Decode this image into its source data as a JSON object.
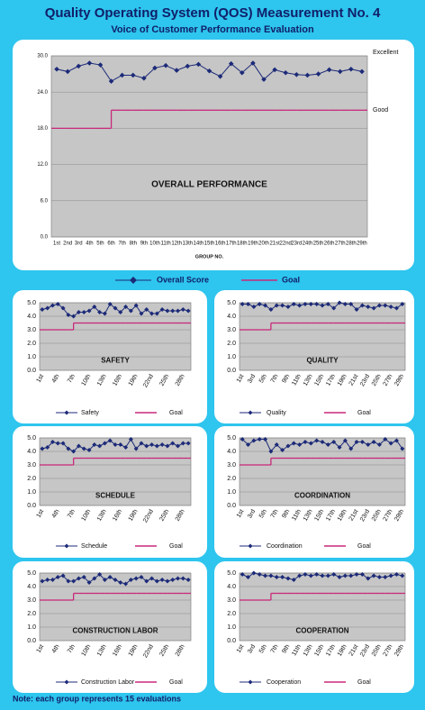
{
  "header": {
    "title": "Quality Operating System (QOS) Measurement No. 4",
    "subtitle": "Voice of Customer Performance Evaluation"
  },
  "note": "Note: each group represents 15 evaluations",
  "chart_data": [
    {
      "type": "line",
      "title": "OVERALL PERFORMANCE",
      "xlabel": "GROUP NO.",
      "annotations": [
        "Excellent",
        "Good"
      ],
      "categories": [
        "1st",
        "2nd",
        "3rd",
        "4th",
        "5th",
        "6th",
        "7th",
        "8th",
        "9th",
        "10th",
        "11th",
        "12th",
        "13th",
        "14th",
        "15th",
        "16th",
        "17th",
        "18th",
        "19th",
        "20th",
        "21st",
        "22nd",
        "23rd",
        "24th",
        "25th",
        "26th",
        "27th",
        "28th",
        "29th"
      ],
      "series": [
        {
          "name": "Overall Score",
          "color": "#1c2a78",
          "marker": "diamond",
          "values": [
            27.8,
            27.4,
            28.3,
            28.8,
            28.5,
            25.8,
            26.8,
            26.8,
            26.3,
            28.0,
            28.4,
            27.6,
            28.3,
            28.6,
            27.5,
            26.6,
            28.7,
            27.2,
            28.8,
            26.1,
            27.7,
            27.2,
            26.9,
            26.8,
            27.0,
            27.7,
            27.4,
            27.8,
            27.4
          ]
        },
        {
          "name": "Goal",
          "color": "#c8287a",
          "drawstyle": "steps",
          "values": [
            18,
            18,
            18,
            18,
            18,
            21,
            21,
            21,
            21,
            21,
            21,
            21,
            21,
            21,
            21,
            21,
            21,
            21,
            21,
            21,
            21,
            21,
            21,
            21,
            21,
            21,
            21,
            21,
            21
          ]
        }
      ],
      "ylim": [
        0,
        30
      ],
      "yticks": [
        {
          "value": 0,
          "label": "0.0"
        },
        {
          "value": 6,
          "label": "6.0"
        },
        {
          "value": 12,
          "label": "12.0"
        },
        {
          "value": 18,
          "label": "18.0"
        },
        {
          "value": 24,
          "label": "24.0"
        },
        {
          "value": 30,
          "label": "30.0"
        }
      ],
      "grid": true
    },
    {
      "type": "line",
      "title": "SAFETY",
      "categories": [
        "1st",
        null,
        null,
        "4th",
        null,
        null,
        "7th",
        null,
        null,
        "10th",
        null,
        null,
        "13th",
        null,
        null,
        "16th",
        null,
        null,
        "19th",
        null,
        null,
        "22nd",
        null,
        null,
        "25th",
        null,
        null,
        "28th",
        null
      ],
      "series": [
        {
          "name": "Safety",
          "color": "#1c2a78",
          "marker": "diamond",
          "values": [
            4.5,
            4.6,
            4.8,
            4.9,
            4.6,
            4.1,
            4.0,
            4.3,
            4.3,
            4.4,
            4.7,
            4.3,
            4.2,
            4.9,
            4.6,
            4.3,
            4.7,
            4.4,
            4.8,
            4.2,
            4.5,
            4.2,
            4.2,
            4.5,
            4.4,
            4.4,
            4.4,
            4.5,
            4.4
          ]
        },
        {
          "name": "Goal",
          "color": "#c8287a",
          "drawstyle": "steps",
          "values": [
            3,
            3,
            3,
            3,
            3,
            3,
            3.5,
            3.5,
            3.5,
            3.5,
            3.5,
            3.5,
            3.5,
            3.5,
            3.5,
            3.5,
            3.5,
            3.5,
            3.5,
            3.5,
            3.5,
            3.5,
            3.5,
            3.5,
            3.5,
            3.5,
            3.5,
            3.5,
            3.5
          ]
        }
      ],
      "ylim": [
        0,
        5
      ],
      "yticks": [
        {
          "value": 0,
          "label": "0.0"
        },
        {
          "value": 1,
          "label": "1.0"
        },
        {
          "value": 2,
          "label": "2.0"
        },
        {
          "value": 3,
          "label": "3.0"
        },
        {
          "value": 4,
          "label": "4.0"
        },
        {
          "value": 5,
          "label": "5.0"
        }
      ],
      "grid": true
    },
    {
      "type": "line",
      "title": "QUALITY",
      "categories": [
        "1st",
        null,
        "3rd",
        null,
        "5th",
        null,
        "7th",
        null,
        "9th",
        null,
        "11th",
        null,
        "13th",
        null,
        "15th",
        null,
        "17th",
        null,
        "19th",
        null,
        "21st",
        null,
        "23rd",
        null,
        "25th",
        null,
        "27th",
        null,
        "29th"
      ],
      "series": [
        {
          "name": "Quality",
          "color": "#1c2a78",
          "marker": "diamond",
          "values": [
            4.9,
            4.9,
            4.7,
            4.9,
            4.8,
            4.5,
            4.8,
            4.8,
            4.7,
            4.9,
            4.8,
            4.9,
            4.9,
            4.9,
            4.8,
            4.9,
            4.6,
            5.0,
            4.9,
            4.9,
            4.5,
            4.8,
            4.7,
            4.6,
            4.8,
            4.8,
            4.7,
            4.6,
            4.9
          ]
        },
        {
          "name": "Goal",
          "color": "#c8287a",
          "drawstyle": "steps",
          "values": [
            3,
            3,
            3,
            3,
            3,
            3.5,
            3.5,
            3.5,
            3.5,
            3.5,
            3.5,
            3.5,
            3.5,
            3.5,
            3.5,
            3.5,
            3.5,
            3.5,
            3.5,
            3.5,
            3.5,
            3.5,
            3.5,
            3.5,
            3.5,
            3.5,
            3.5,
            3.5,
            3.5
          ]
        }
      ],
      "ylim": [
        0,
        5
      ],
      "yticks": [
        {
          "value": 0,
          "label": "0.0"
        },
        {
          "value": 1,
          "label": "1.0"
        },
        {
          "value": 2,
          "label": "2.0"
        },
        {
          "value": 3,
          "label": "3.0"
        },
        {
          "value": 4,
          "label": "4.0"
        },
        {
          "value": 5,
          "label": "5.0"
        }
      ],
      "grid": true
    },
    {
      "type": "line",
      "title": "SCHEDULE",
      "categories": [
        "1st",
        null,
        null,
        "4th",
        null,
        null,
        "7th",
        null,
        null,
        "10th",
        null,
        null,
        "13th",
        null,
        null,
        "16th",
        null,
        null,
        "19th",
        null,
        null,
        "22nd",
        null,
        null,
        "25th",
        null,
        null,
        "28th",
        null
      ],
      "series": [
        {
          "name": "Schedule",
          "color": "#1c2a78",
          "marker": "diamond",
          "values": [
            4.2,
            4.3,
            4.7,
            4.6,
            4.6,
            4.2,
            4.0,
            4.4,
            4.2,
            4.1,
            4.5,
            4.4,
            4.6,
            4.8,
            4.5,
            4.5,
            4.3,
            4.9,
            4.2,
            4.6,
            4.4,
            4.5,
            4.4,
            4.5,
            4.4,
            4.6,
            4.4,
            4.6,
            4.6
          ]
        },
        {
          "name": "Goal",
          "color": "#c8287a",
          "drawstyle": "steps",
          "values": [
            3,
            3,
            3,
            3,
            3,
            3,
            3.5,
            3.5,
            3.5,
            3.5,
            3.5,
            3.5,
            3.5,
            3.5,
            3.5,
            3.5,
            3.5,
            3.5,
            3.5,
            3.5,
            3.5,
            3.5,
            3.5,
            3.5,
            3.5,
            3.5,
            3.5,
            3.5,
            3.5
          ]
        }
      ],
      "ylim": [
        0,
        5
      ],
      "yticks": [
        {
          "value": 0,
          "label": "0.0"
        },
        {
          "value": 1,
          "label": "1.0"
        },
        {
          "value": 2,
          "label": "2.0"
        },
        {
          "value": 3,
          "label": "3.0"
        },
        {
          "value": 4,
          "label": "4.0"
        },
        {
          "value": 5,
          "label": "5.0"
        }
      ],
      "grid": true
    },
    {
      "type": "line",
      "title": "COORDINATION",
      "categories": [
        "1st",
        null,
        "3rd",
        null,
        "5th",
        null,
        "7th",
        null,
        "9th",
        null,
        "11th",
        null,
        "13th",
        null,
        "15th",
        null,
        "17th",
        null,
        "19th",
        null,
        "21st",
        null,
        "23rd",
        null,
        "25th",
        null,
        "27th",
        null,
        "29th"
      ],
      "series": [
        {
          "name": "Coordination",
          "color": "#1c2a78",
          "marker": "diamond",
          "values": [
            4.9,
            4.5,
            4.8,
            4.9,
            4.9,
            4.0,
            4.5,
            4.1,
            4.4,
            4.6,
            4.5,
            4.7,
            4.6,
            4.8,
            4.7,
            4.5,
            4.7,
            4.3,
            4.8,
            4.2,
            4.7,
            4.7,
            4.5,
            4.7,
            4.5,
            4.9,
            4.6,
            4.8,
            4.2
          ]
        },
        {
          "name": "Goal",
          "color": "#c8287a",
          "drawstyle": "steps",
          "values": [
            3,
            3,
            3,
            3,
            3,
            3.5,
            3.5,
            3.5,
            3.5,
            3.5,
            3.5,
            3.5,
            3.5,
            3.5,
            3.5,
            3.5,
            3.5,
            3.5,
            3.5,
            3.5,
            3.5,
            3.5,
            3.5,
            3.5,
            3.5,
            3.5,
            3.5,
            3.5,
            3.5
          ]
        }
      ],
      "ylim": [
        0,
        5
      ],
      "yticks": [
        {
          "value": 0,
          "label": "0.0"
        },
        {
          "value": 1,
          "label": "1.0"
        },
        {
          "value": 2,
          "label": "2.0"
        },
        {
          "value": 3,
          "label": "3.0"
        },
        {
          "value": 4,
          "label": "4.0"
        },
        {
          "value": 5,
          "label": "5.0"
        }
      ],
      "grid": true
    },
    {
      "type": "line",
      "title": "CONSTRUCTION LABOR",
      "categories": [
        "1st",
        null,
        null,
        "4th",
        null,
        null,
        "7th",
        null,
        null,
        "10th",
        null,
        null,
        "13th",
        null,
        null,
        "16th",
        null,
        null,
        "19th",
        null,
        null,
        "22nd",
        null,
        null,
        "25th",
        null,
        null,
        "28th",
        null
      ],
      "series": [
        {
          "name": "Construction Labor",
          "color": "#1c2a78",
          "marker": "diamond",
          "values": [
            4.4,
            4.5,
            4.5,
            4.7,
            4.8,
            4.4,
            4.4,
            4.6,
            4.7,
            4.3,
            4.6,
            4.9,
            4.5,
            4.7,
            4.5,
            4.3,
            4.2,
            4.5,
            4.6,
            4.7,
            4.4,
            4.6,
            4.4,
            4.5,
            4.4,
            4.5,
            4.6,
            4.6,
            4.5
          ]
        },
        {
          "name": "Goal",
          "color": "#c8287a",
          "drawstyle": "steps",
          "values": [
            3,
            3,
            3,
            3,
            3,
            3,
            3.5,
            3.5,
            3.5,
            3.5,
            3.5,
            3.5,
            3.5,
            3.5,
            3.5,
            3.5,
            3.5,
            3.5,
            3.5,
            3.5,
            3.5,
            3.5,
            3.5,
            3.5,
            3.5,
            3.5,
            3.5,
            3.5,
            3.5
          ]
        }
      ],
      "ylim": [
        0,
        5
      ],
      "yticks": [
        {
          "value": 0,
          "label": "0.0"
        },
        {
          "value": 1,
          "label": "1.0"
        },
        {
          "value": 2,
          "label": "2.0"
        },
        {
          "value": 3,
          "label": "3.0"
        },
        {
          "value": 4,
          "label": "4.0"
        },
        {
          "value": 5,
          "label": "5.0"
        }
      ],
      "grid": true
    },
    {
      "type": "line",
      "title": "COOPERATION",
      "categories": [
        "1st",
        null,
        "3rd",
        null,
        "5th",
        null,
        "7th",
        null,
        "9th",
        null,
        "11th",
        null,
        "13th",
        null,
        "15th",
        null,
        "17th",
        null,
        "19th",
        null,
        "21st",
        null,
        "23rd",
        null,
        "25th",
        null,
        "27th",
        null,
        "29th"
      ],
      "series": [
        {
          "name": "Cooperation",
          "color": "#1c2a78",
          "marker": "diamond",
          "values": [
            4.9,
            4.7,
            5.0,
            4.9,
            4.8,
            4.8,
            4.7,
            4.7,
            4.6,
            4.5,
            4.8,
            4.9,
            4.8,
            4.9,
            4.8,
            4.8,
            4.9,
            4.7,
            4.8,
            4.8,
            4.9,
            4.9,
            4.6,
            4.8,
            4.7,
            4.7,
            4.8,
            4.9,
            4.8
          ]
        },
        {
          "name": "Goal",
          "color": "#c8287a",
          "drawstyle": "steps",
          "values": [
            3,
            3,
            3,
            3,
            3,
            3.5,
            3.5,
            3.5,
            3.5,
            3.5,
            3.5,
            3.5,
            3.5,
            3.5,
            3.5,
            3.5,
            3.5,
            3.5,
            3.5,
            3.5,
            3.5,
            3.5,
            3.5,
            3.5,
            3.5,
            3.5,
            3.5,
            3.5,
            3.5
          ]
        }
      ],
      "ylim": [
        0,
        5
      ],
      "yticks": [
        {
          "value": 0,
          "label": "0.0"
        },
        {
          "value": 1,
          "label": "1.0"
        },
        {
          "value": 2,
          "label": "2.0"
        },
        {
          "value": 3,
          "label": "3.0"
        },
        {
          "value": 4,
          "label": "4.0"
        },
        {
          "value": 5,
          "label": "5.0"
        }
      ],
      "grid": true
    }
  ]
}
